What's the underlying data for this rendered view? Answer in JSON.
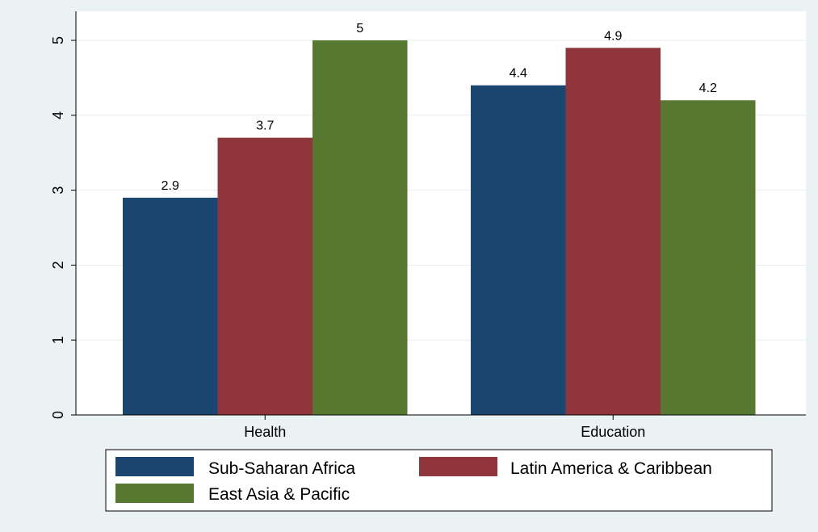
{
  "chart_data": {
    "type": "bar",
    "categories": [
      "Health",
      "Education"
    ],
    "series": [
      {
        "name": "Sub-Saharan Africa",
        "values": [
          2.9,
          4.4
        ],
        "color": "#1b4670"
      },
      {
        "name": "Latin America & Caribbean",
        "values": [
          3.7,
          4.9
        ],
        "color": "#90353c"
      },
      {
        "name": "East Asia & Pacific",
        "values": [
          5,
          4.2
        ],
        "color": "#56782f"
      }
    ],
    "title": "",
    "xlabel": "",
    "ylabel": "",
    "ylim": [
      0,
      5
    ],
    "yticks": [
      0,
      1,
      2,
      3,
      4,
      5
    ],
    "grid": true,
    "legend_position": "bottom",
    "colors": {
      "background": "#eaf2f3",
      "plot_background": "#ffffff",
      "gridline": "#e6eded"
    }
  }
}
